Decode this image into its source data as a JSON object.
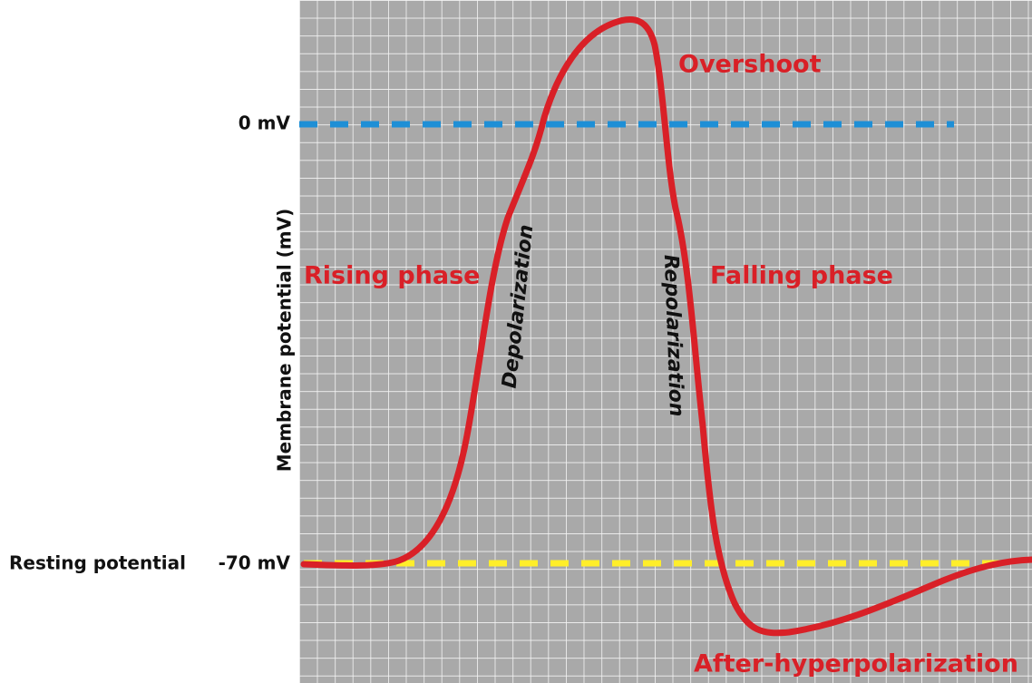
{
  "labels": {
    "zero": "0 mV",
    "resting": "Resting potential",
    "resting_value": "-70 mV",
    "y_axis": "Membrane potential (mV)",
    "overshoot": "Overshoot",
    "rising": "Rising phase",
    "falling": "Falling phase",
    "depolarization": "Depolarization",
    "repolarization": "Repolarization",
    "after": "After-hyperpolarization"
  }
}
